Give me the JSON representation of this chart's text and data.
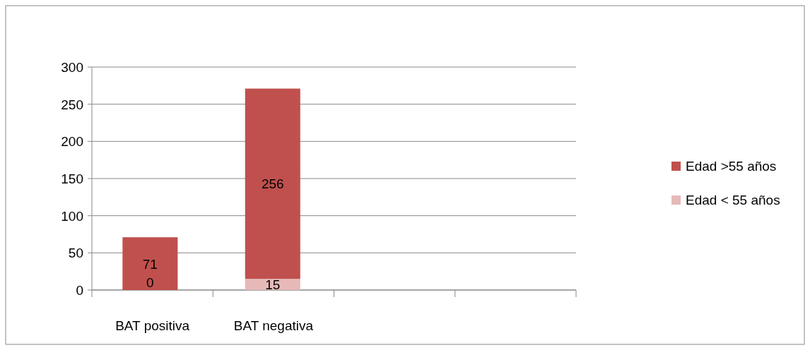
{
  "chart_data": {
    "type": "bar",
    "stacked": true,
    "categories": [
      "BAT positiva",
      "BAT negativa",
      null,
      null
    ],
    "series": [
      {
        "name": "Edad < 55 años",
        "color": "#e6b9b8",
        "values": [
          0,
          15,
          null,
          null
        ]
      },
      {
        "name": "Edad >55 años",
        "color": "#c0504d",
        "values": [
          71,
          256,
          null,
          null
        ]
      }
    ],
    "ylim": [
      0,
      300
    ],
    "yticks": [
      0,
      50,
      100,
      150,
      200,
      250,
      300
    ],
    "grid": "y",
    "legend": "right",
    "data_labels": true
  }
}
